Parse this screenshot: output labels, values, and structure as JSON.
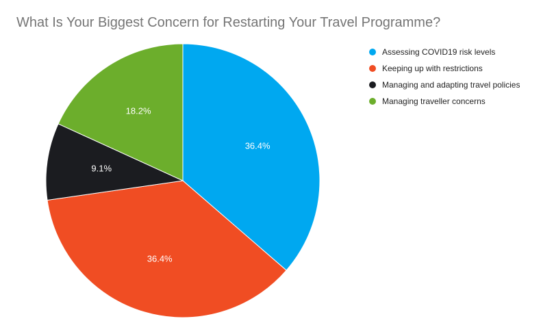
{
  "chart_data": {
    "type": "pie",
    "title": "What Is Your Biggest Concern for Restarting Your Travel Programme?",
    "categories": [
      "Assessing COVID19 risk levels",
      "Keeping up with restrictions",
      "Managing and adapting travel policies",
      "Managing traveller concerns"
    ],
    "values": [
      36.4,
      36.4,
      9.1,
      18.2
    ],
    "labels": [
      "36.4%",
      "36.4%",
      "9.1%",
      "18.2%"
    ],
    "colors": [
      "#00a8f0",
      "#f04d23",
      "#1b1c20",
      "#6cae2c"
    ],
    "legend_position": "right"
  }
}
